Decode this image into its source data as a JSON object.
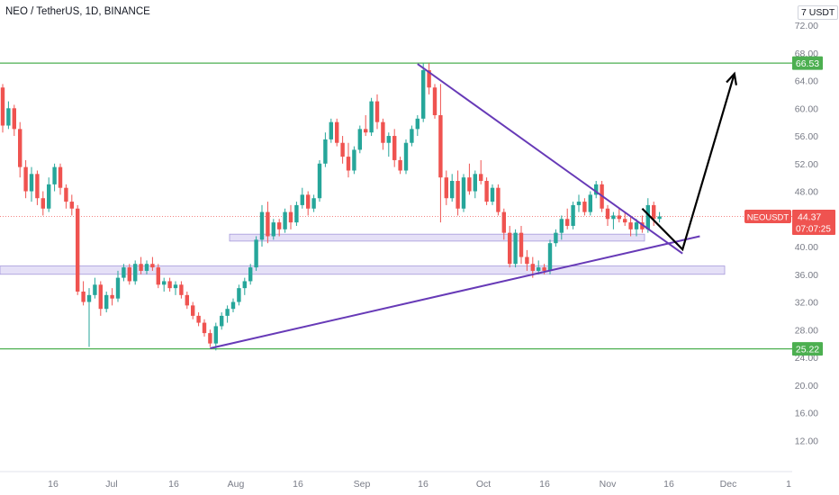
{
  "header": {
    "title": "NEO / TetherUS, 1D, BINANCE",
    "currency": "USDT"
  },
  "price_tag": {
    "symbol": "NEOUSDT",
    "price": "44.37",
    "countdown": "07:07:25"
  },
  "colors": {
    "up": "#26a69a",
    "down": "#ef5350",
    "green_line": "#4caf50",
    "purple_line": "#673ab7",
    "zone_fill": "#e3ddf7",
    "zone_stroke": "#9c8fd8",
    "arrow": "#000000"
  },
  "chart_data": {
    "type": "candlestick",
    "y_axis": {
      "range": [
        8,
        75
      ],
      "ticks": [
        "12.00",
        "16.00",
        "20.00",
        "24.00",
        "28.00",
        "32.00",
        "36.00",
        "40.00",
        "44.00",
        "48.00",
        "52.00",
        "56.00",
        "60.00",
        "64.00",
        "68.00",
        "72.00"
      ],
      "top_label": "7"
    },
    "x_axis": {
      "ticks": [
        "16",
        "Jul",
        "16",
        "Aug",
        "16",
        "Sep",
        "16",
        "Oct",
        "16",
        "Nov",
        "16",
        "Dec",
        "1"
      ]
    },
    "levels": [
      {
        "price": 66.53,
        "label": "66.53"
      },
      {
        "price": 25.22,
        "label": "25.22"
      }
    ],
    "zones": [
      {
        "low": 40.8,
        "high": 41.8
      },
      {
        "low": 36.0,
        "high": 37.2
      }
    ],
    "candles_ohlc": [
      [
        63.0,
        63.5,
        56.5,
        57.5
      ],
      [
        57.5,
        61.0,
        57.0,
        60.0
      ],
      [
        60.0,
        60.5,
        56.0,
        57.0
      ],
      [
        57.0,
        58.0,
        50.0,
        51.5
      ],
      [
        51.5,
        52.5,
        47.0,
        48.0
      ],
      [
        48.0,
        51.5,
        46.5,
        50.5
      ],
      [
        50.5,
        51.0,
        46.0,
        47.0
      ],
      [
        47.0,
        48.0,
        44.5,
        45.5
      ],
      [
        45.5,
        50.0,
        45.0,
        49.0
      ],
      [
        49.0,
        52.0,
        48.0,
        51.5
      ],
      [
        51.5,
        52.0,
        47.5,
        48.5
      ],
      [
        48.5,
        49.0,
        45.5,
        46.5
      ],
      [
        46.5,
        47.5,
        44.5,
        45.5
      ],
      [
        45.5,
        46.0,
        33.0,
        33.5
      ],
      [
        33.5,
        35.0,
        31.5,
        32.0
      ],
      [
        32.0,
        34.0,
        25.5,
        33.0
      ],
      [
        33.0,
        35.5,
        32.5,
        34.5
      ],
      [
        34.5,
        35.0,
        30.0,
        31.0
      ],
      [
        31.0,
        33.5,
        30.5,
        33.0
      ],
      [
        33.0,
        34.0,
        31.5,
        32.5
      ],
      [
        32.5,
        36.5,
        32.0,
        35.5
      ],
      [
        35.5,
        37.5,
        35.0,
        37.0
      ],
      [
        37.0,
        37.5,
        34.5,
        35.0
      ],
      [
        35.0,
        38.0,
        34.5,
        37.5
      ],
      [
        37.5,
        38.5,
        36.0,
        36.5
      ],
      [
        36.5,
        38.0,
        36.0,
        37.5
      ],
      [
        37.5,
        38.5,
        36.5,
        37.0
      ],
      [
        37.0,
        37.5,
        34.0,
        34.5
      ],
      [
        34.5,
        35.5,
        33.5,
        35.0
      ],
      [
        35.0,
        35.5,
        33.5,
        34.0
      ],
      [
        34.0,
        35.0,
        33.0,
        34.5
      ],
      [
        34.5,
        35.0,
        32.5,
        33.0
      ],
      [
        33.0,
        33.5,
        31.0,
        31.5
      ],
      [
        31.5,
        32.0,
        29.5,
        30.0
      ],
      [
        30.0,
        30.5,
        28.5,
        29.0
      ],
      [
        29.0,
        29.5,
        27.0,
        27.5
      ],
      [
        27.5,
        28.0,
        25.5,
        26.0
      ],
      [
        26.0,
        29.0,
        25.0,
        28.5
      ],
      [
        28.5,
        30.5,
        28.0,
        30.0
      ],
      [
        30.0,
        31.5,
        29.0,
        31.0
      ],
      [
        31.0,
        32.5,
        30.5,
        32.0
      ],
      [
        32.0,
        34.5,
        31.5,
        34.0
      ],
      [
        34.0,
        35.5,
        33.0,
        35.0
      ],
      [
        35.0,
        37.5,
        34.5,
        37.0
      ],
      [
        37.0,
        41.5,
        36.5,
        41.0
      ],
      [
        41.0,
        46.0,
        40.0,
        45.0
      ],
      [
        45.0,
        46.5,
        40.5,
        41.5
      ],
      [
        41.5,
        44.0,
        41.0,
        43.5
      ],
      [
        43.5,
        44.0,
        41.5,
        42.5
      ],
      [
        42.5,
        45.5,
        42.0,
        45.0
      ],
      [
        45.0,
        46.0,
        42.5,
        43.5
      ],
      [
        43.5,
        46.5,
        43.0,
        46.0
      ],
      [
        46.0,
        48.5,
        45.5,
        47.5
      ],
      [
        47.5,
        48.0,
        44.5,
        45.5
      ],
      [
        45.5,
        47.5,
        45.0,
        47.0
      ],
      [
        47.0,
        52.5,
        46.5,
        52.0
      ],
      [
        52.0,
        56.5,
        51.5,
        55.5
      ],
      [
        55.5,
        58.5,
        55.0,
        58.0
      ],
      [
        58.0,
        58.5,
        54.5,
        55.0
      ],
      [
        55.0,
        56.0,
        52.0,
        53.0
      ],
      [
        53.0,
        55.0,
        50.0,
        51.0
      ],
      [
        51.0,
        54.5,
        50.5,
        54.0
      ],
      [
        54.0,
        57.5,
        53.5,
        57.0
      ],
      [
        57.0,
        59.0,
        56.0,
        56.5
      ],
      [
        56.5,
        61.5,
        56.0,
        61.0
      ],
      [
        61.0,
        62.0,
        57.0,
        58.0
      ],
      [
        58.0,
        58.5,
        54.0,
        55.0
      ],
      [
        55.0,
        56.5,
        53.0,
        56.0
      ],
      [
        56.0,
        57.0,
        51.5,
        52.5
      ],
      [
        52.5,
        53.0,
        50.5,
        51.0
      ],
      [
        51.0,
        55.5,
        50.5,
        55.0
      ],
      [
        55.0,
        57.5,
        54.5,
        57.0
      ],
      [
        57.0,
        59.0,
        56.0,
        58.5
      ],
      [
        58.5,
        66.5,
        58.0,
        65.5
      ],
      [
        65.5,
        66.5,
        62.0,
        63.0
      ],
      [
        63.0,
        63.5,
        58.5,
        59.0
      ],
      [
        59.0,
        63.5,
        43.5,
        50.0
      ],
      [
        50.0,
        51.0,
        46.0,
        47.0
      ],
      [
        47.0,
        50.5,
        46.5,
        49.5
      ],
      [
        49.5,
        51.0,
        44.5,
        45.5
      ],
      [
        45.5,
        50.5,
        45.0,
        50.0
      ],
      [
        50.0,
        52.0,
        47.5,
        48.0
      ],
      [
        48.0,
        51.0,
        47.0,
        50.5
      ],
      [
        50.5,
        52.5,
        49.0,
        49.5
      ],
      [
        49.5,
        50.0,
        46.0,
        46.5
      ],
      [
        46.5,
        49.0,
        46.0,
        48.5
      ],
      [
        48.5,
        49.0,
        44.5,
        45.0
      ],
      [
        45.0,
        45.5,
        41.0,
        42.0
      ],
      [
        42.0,
        43.0,
        37.0,
        37.5
      ],
      [
        37.5,
        42.5,
        37.0,
        42.0
      ],
      [
        42.0,
        43.0,
        37.5,
        38.5
      ],
      [
        38.5,
        39.5,
        36.5,
        37.5
      ],
      [
        37.5,
        38.5,
        35.5,
        36.5
      ],
      [
        36.5,
        38.0,
        36.0,
        37.0
      ],
      [
        37.0,
        37.5,
        36.0,
        36.5
      ],
      [
        36.5,
        41.0,
        36.0,
        40.5
      ],
      [
        40.5,
        42.5,
        40.0,
        42.0
      ],
      [
        42.0,
        44.5,
        41.0,
        44.0
      ],
      [
        44.0,
        45.5,
        42.5,
        43.0
      ],
      [
        43.0,
        46.5,
        42.5,
        46.0
      ],
      [
        46.0,
        47.5,
        45.0,
        46.5
      ],
      [
        46.5,
        47.0,
        44.5,
        45.0
      ],
      [
        45.0,
        48.0,
        44.5,
        47.5
      ],
      [
        47.5,
        49.5,
        47.0,
        49.0
      ],
      [
        49.0,
        49.5,
        45.0,
        45.5
      ],
      [
        45.5,
        46.0,
        43.0,
        44.0
      ],
      [
        44.0,
        45.0,
        42.5,
        44.5
      ],
      [
        44.5,
        45.5,
        43.5,
        44.0
      ],
      [
        44.0,
        45.0,
        43.0,
        43.5
      ],
      [
        43.5,
        44.5,
        41.5,
        42.5
      ],
      [
        42.5,
        44.0,
        41.5,
        43.5
      ],
      [
        43.5,
        44.5,
        42.0,
        42.5
      ],
      [
        42.5,
        47.0,
        42.0,
        46.0
      ],
      [
        46.0,
        46.5,
        43.0,
        44.0
      ],
      [
        44.0,
        45.0,
        43.5,
        44.37
      ]
    ],
    "trendlines": [
      {
        "name": "resistance",
        "from_index": 72,
        "from_price": 66.4,
        "to_index": 118,
        "to_price": 39.0
      },
      {
        "name": "support",
        "from_index": 36,
        "from_price": 25.3,
        "to_index": 121,
        "to_price": 41.5
      }
    ],
    "projection": {
      "start": {
        "index": 111,
        "price": 45.5
      },
      "pivot": {
        "index": 118,
        "price": 39.6
      },
      "end": {
        "index": 127,
        "price": 65.0
      }
    },
    "last_price": 44.37,
    "grid": false
  }
}
